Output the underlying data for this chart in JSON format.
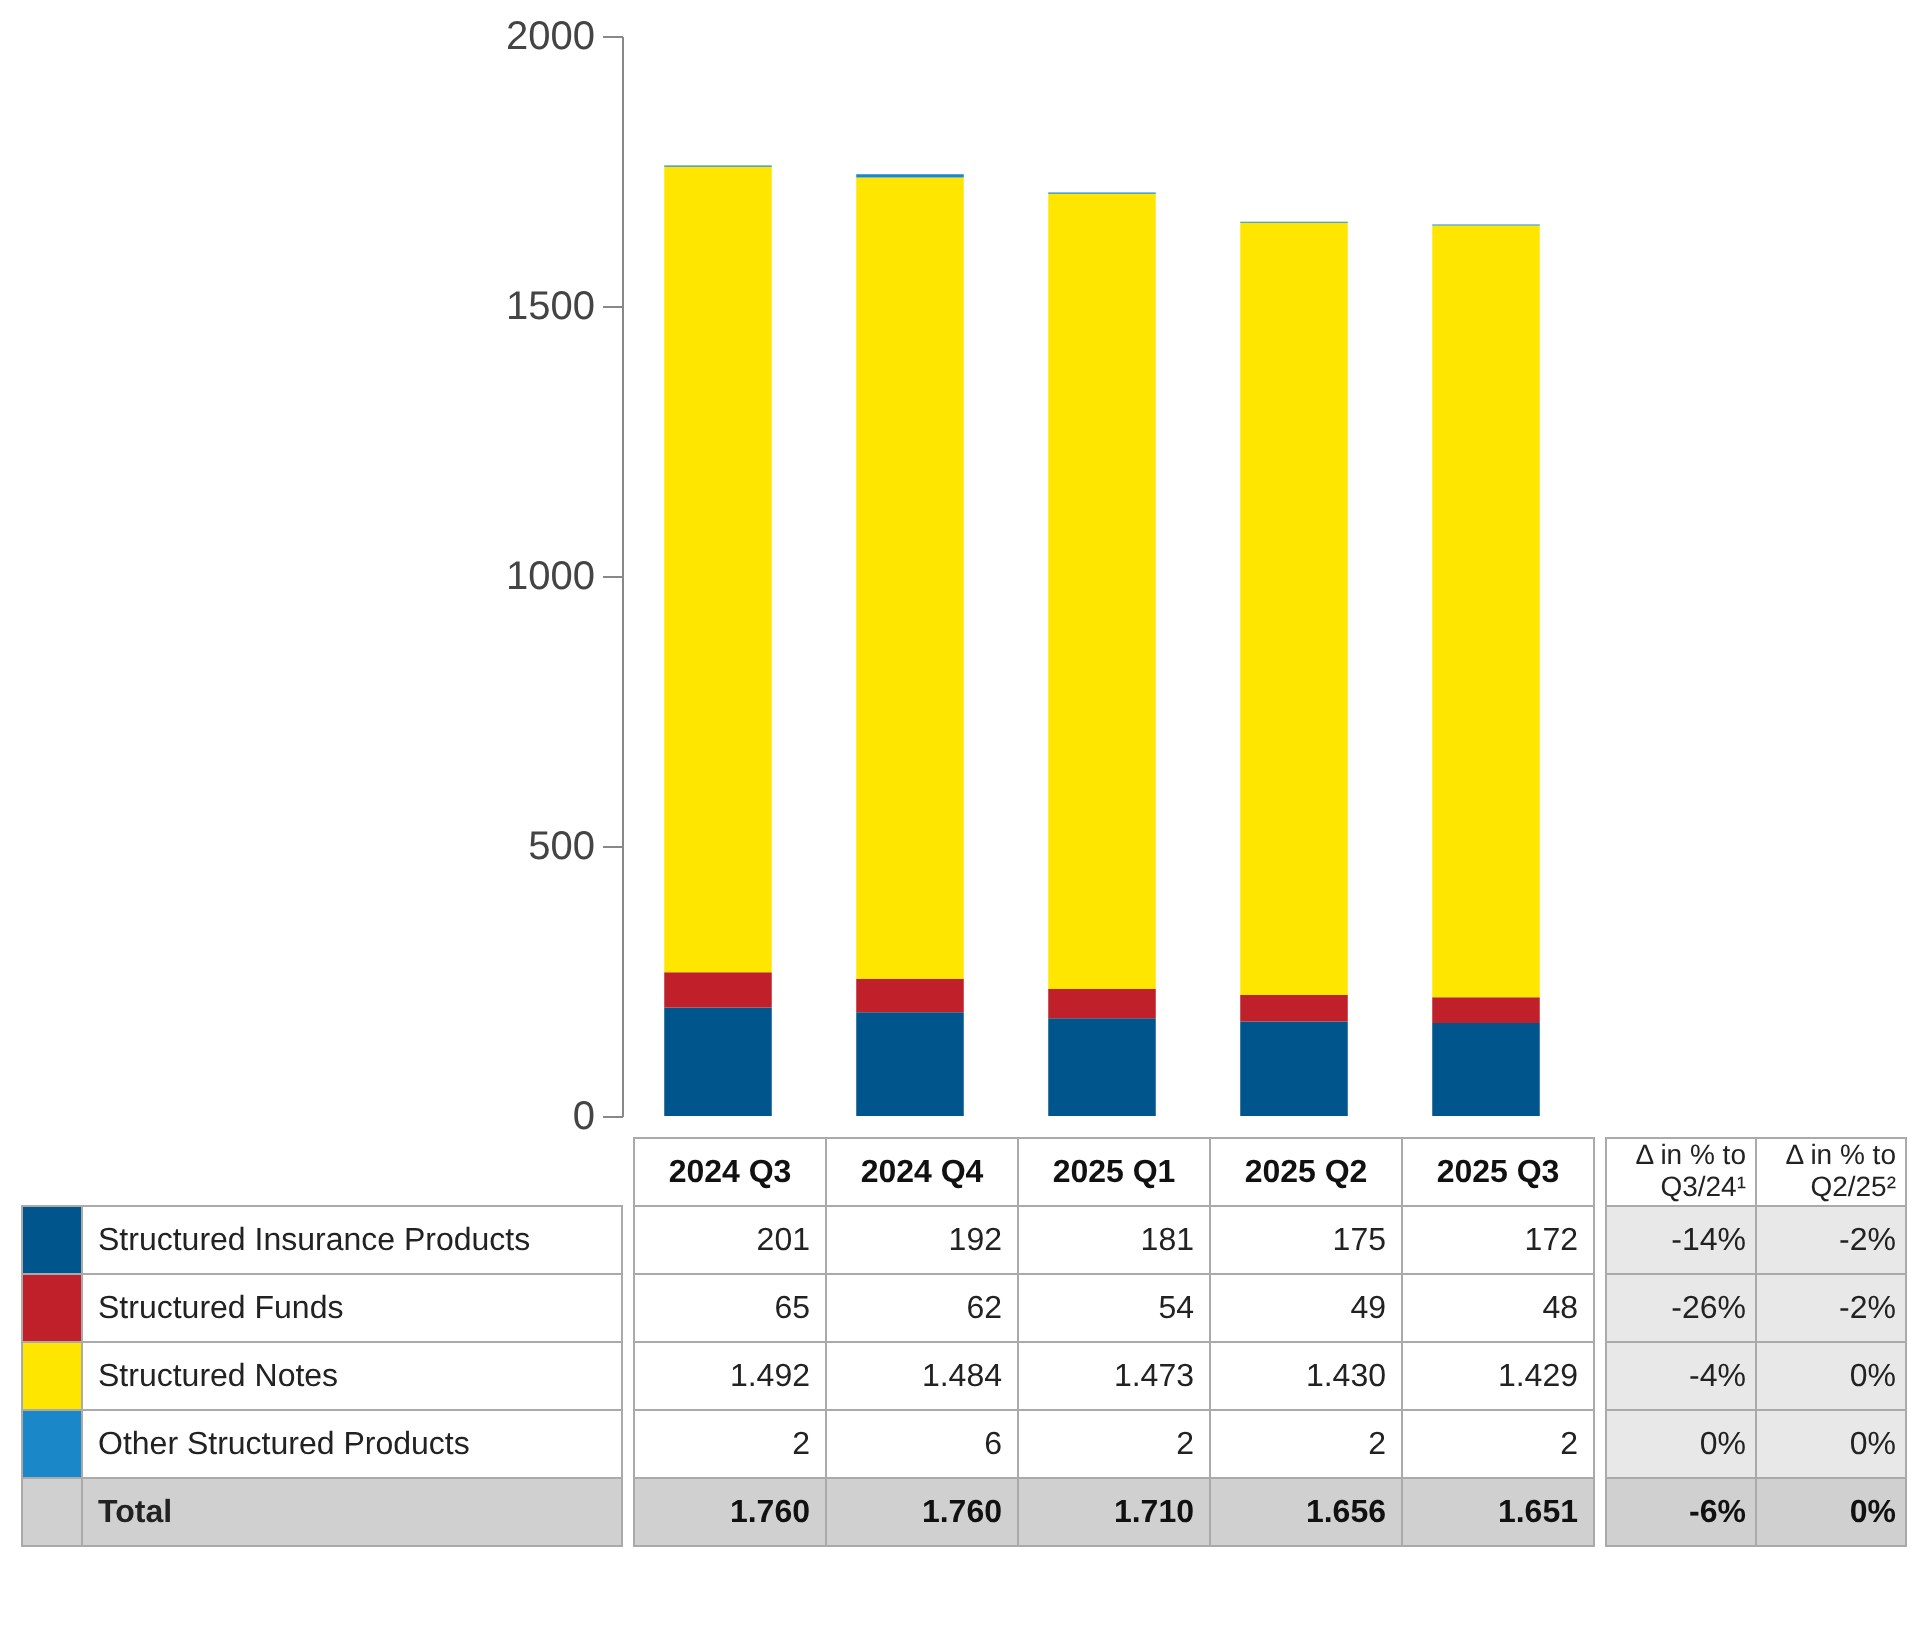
{
  "chart_data": {
    "type": "bar",
    "stacked": true,
    "categories": [
      "2024 Q3",
      "2024 Q4",
      "2025 Q1",
      "2025 Q2",
      "2025 Q3"
    ],
    "legend": "bottom",
    "ylim": [
      0,
      2000
    ],
    "yticks": [
      0,
      500,
      1000,
      1500,
      2000
    ],
    "series": [
      {
        "name": "Structured Insurance Products",
        "color": "#00558c",
        "values": [
          201,
          192,
          181,
          175,
          172
        ],
        "value_labels": [
          "201",
          "192",
          "181",
          "175",
          "172"
        ]
      },
      {
        "name": "Structured Funds",
        "color": "#c0202a",
        "values": [
          65,
          62,
          54,
          49,
          48
        ],
        "value_labels": [
          "65",
          "62",
          "54",
          "49",
          "48"
        ]
      },
      {
        "name": "Structured Notes",
        "color": "#ffe600",
        "values": [
          1492,
          1484,
          1473,
          1430,
          1429
        ],
        "value_labels": [
          "1.492",
          "1.484",
          "1.473",
          "1.430",
          "1.429"
        ]
      },
      {
        "name": "Other Structured Products",
        "color": "#1a87c9",
        "values": [
          2,
          6,
          2,
          2,
          2
        ],
        "value_labels": [
          "2",
          "6",
          "2",
          "2",
          "2"
        ]
      }
    ],
    "annotations": [
      "Total",
      "Δ in % to Q3/24¹",
      "Δ in % to Q2/25²",
      "-14%",
      "-2%",
      "-26%",
      "-2%",
      "-4%",
      "0%",
      "0%",
      "0%",
      "-6%",
      "0%",
      "1.760",
      "1.760",
      "1.710",
      "1.656",
      "1.651"
    ]
  }
}
